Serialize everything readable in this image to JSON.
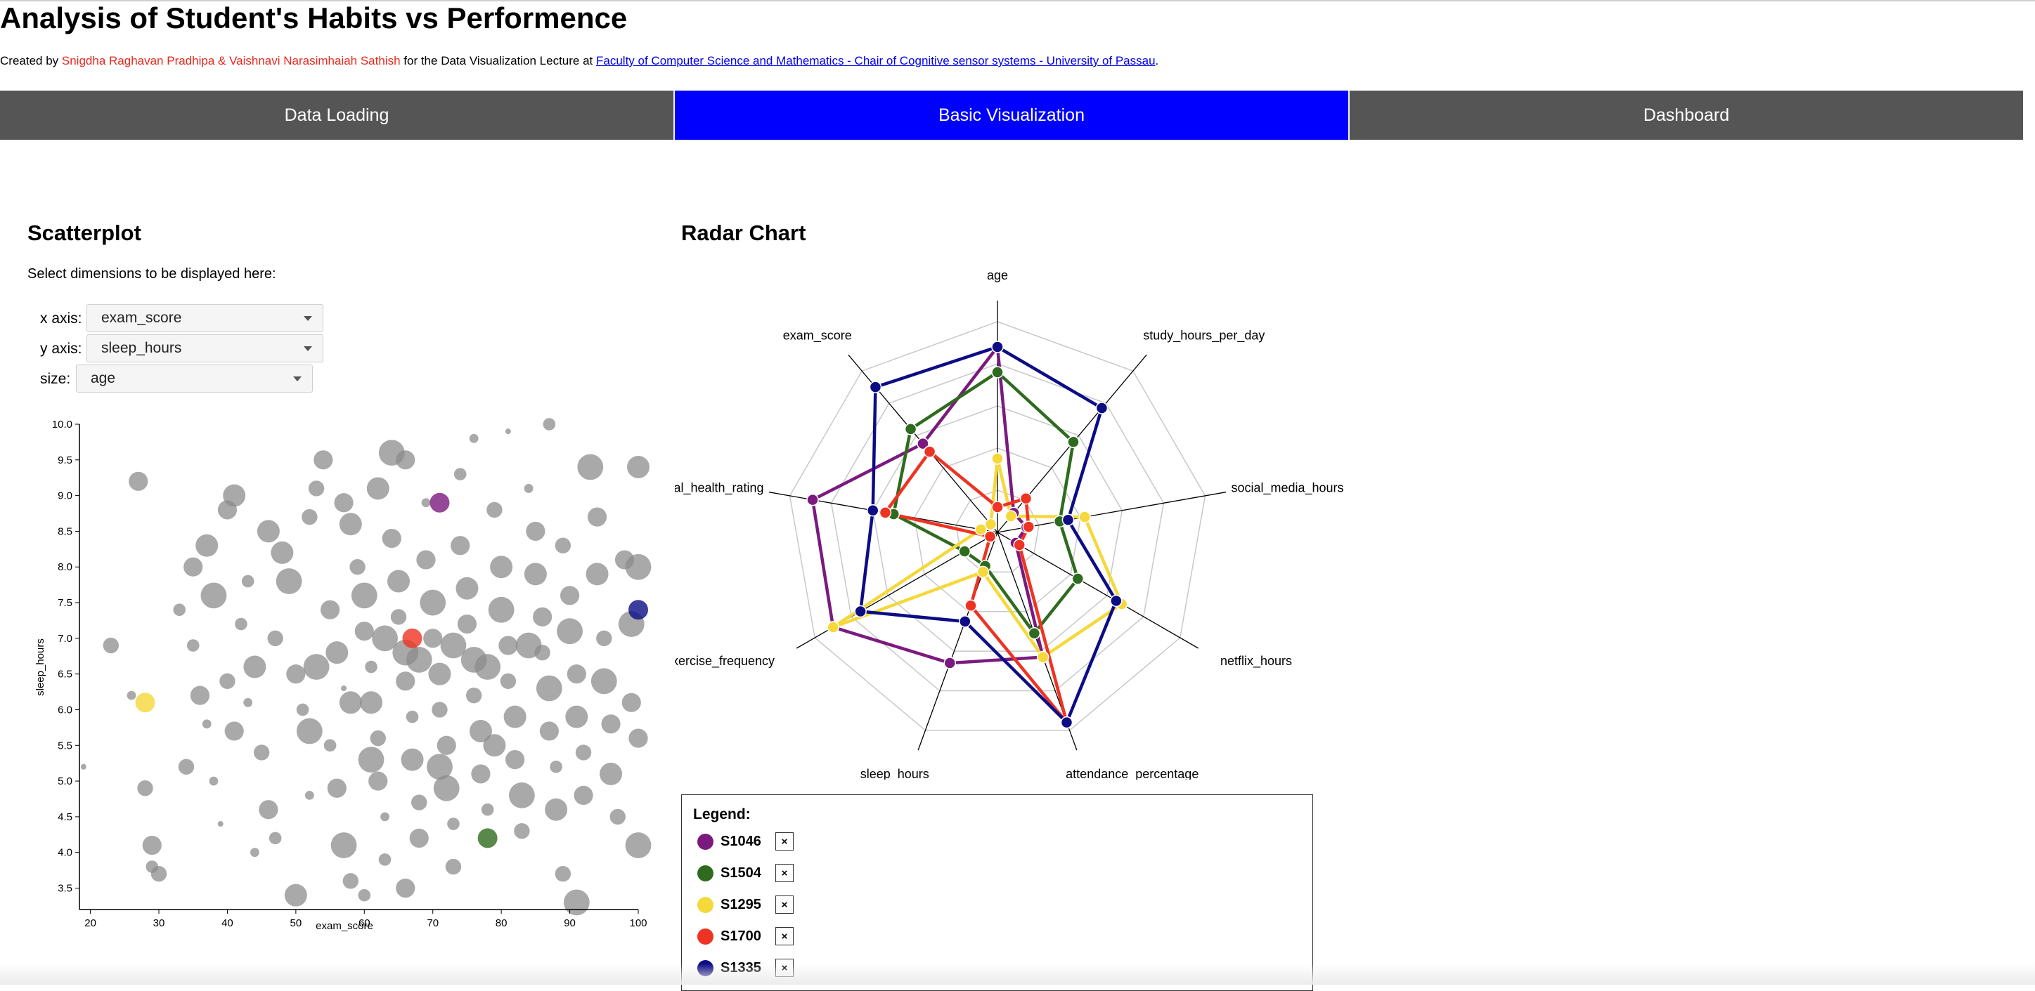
{
  "page": {
    "title": "Analysis of Student's Habits vs Performence",
    "credits_prefix": "Created by ",
    "authors": "Snigdha Raghavan Pradhipa & Vaishnavi Narasimhaiah Sathish",
    "credits_middle": " for the Data Visualization Lecture at ",
    "institution_link": "Faculty of Computer Science and Mathematics - Chair of Cognitive sensor systems - University of Passau",
    "credits_suffix": "."
  },
  "tabs": [
    {
      "label": "Data Loading",
      "active": false
    },
    {
      "label": "Basic Visualization",
      "active": true
    },
    {
      "label": "Dashboard",
      "active": false
    }
  ],
  "colors": {
    "tab_bg": "#555555",
    "tab_active_bg": "#0000ff",
    "author_text": "#e8281e",
    "link": "#0000ee",
    "dot_gray": "#8c8c8c"
  },
  "scatter": {
    "heading": "Scatterplot",
    "hint": "Select dimensions to be displayed here:",
    "controls": {
      "x_label": "x axis:",
      "x_value": "exam_score",
      "y_label": "y axis:",
      "y_value": "sleep_hours",
      "size_label": "size:",
      "size_value": "age"
    }
  },
  "radar": {
    "heading": "Radar Chart",
    "legend_title": "Legend:",
    "remove_symbol": "×",
    "students": [
      {
        "id": "S1046",
        "color": "#7b1a7e"
      },
      {
        "id": "S1504",
        "color": "#2e6b1e"
      },
      {
        "id": "S1295",
        "color": "#f5d83a"
      },
      {
        "id": "S1700",
        "color": "#ee3322"
      },
      {
        "id": "S1335",
        "color": "#0c0c85"
      }
    ]
  },
  "chart_data": [
    {
      "type": "scatter",
      "xlabel": "exam_score",
      "ylabel": "sleep_hours",
      "size_dimension": "age",
      "xlim": [
        18.4,
        100
      ],
      "ylim": [
        3.2,
        10.0
      ],
      "x_ticks": [
        20,
        30,
        40,
        50,
        60,
        70,
        80,
        90,
        100
      ],
      "y_ticks": [
        3.5,
        4.0,
        4.5,
        5.0,
        5.5,
        6.0,
        6.5,
        7.0,
        7.5,
        8.0,
        8.5,
        9.0,
        9.5,
        10.0
      ],
      "grid": false,
      "highlighted_points": [
        {
          "id": "S1046",
          "x": 71,
          "y": 8.9,
          "color": "#7b1a7e"
        },
        {
          "id": "S1504",
          "x": 78,
          "y": 4.2,
          "color": "#2e6b1e"
        },
        {
          "id": "S1295",
          "x": 28,
          "y": 6.1,
          "color": "#f5d83a"
        },
        {
          "id": "S1700",
          "x": 67,
          "y": 7.0,
          "color": "#ee3322"
        },
        {
          "id": "S1335",
          "x": 100,
          "y": 7.4,
          "color": "#0c0c85"
        }
      ],
      "points": [
        {
          "x": 27,
          "y": 9.2,
          "age": 22
        },
        {
          "x": 23,
          "y": 6.9,
          "age": 21
        },
        {
          "x": 26,
          "y": 6.2,
          "age": 19
        },
        {
          "x": 19,
          "y": 5.2,
          "age": 18
        },
        {
          "x": 28,
          "y": 4.9,
          "age": 21
        },
        {
          "x": 29,
          "y": 4.1,
          "age": 22
        },
        {
          "x": 29,
          "y": 3.8,
          "age": 20
        },
        {
          "x": 30,
          "y": 3.7,
          "age": 21
        },
        {
          "x": 33,
          "y": 7.4,
          "age": 20
        },
        {
          "x": 35,
          "y": 8.0,
          "age": 22
        },
        {
          "x": 37,
          "y": 8.3,
          "age": 23
        },
        {
          "x": 38,
          "y": 7.6,
          "age": 24
        },
        {
          "x": 35,
          "y": 6.9,
          "age": 20
        },
        {
          "x": 36,
          "y": 6.2,
          "age": 22
        },
        {
          "x": 37,
          "y": 5.8,
          "age": 19
        },
        {
          "x": 34,
          "y": 5.2,
          "age": 21
        },
        {
          "x": 38,
          "y": 5.0,
          "age": 19
        },
        {
          "x": 39,
          "y": 4.4,
          "age": 18
        },
        {
          "x": 40,
          "y": 8.8,
          "age": 22
        },
        {
          "x": 41,
          "y": 9.0,
          "age": 23
        },
        {
          "x": 42,
          "y": 7.2,
          "age": 20
        },
        {
          "x": 44,
          "y": 6.6,
          "age": 23
        },
        {
          "x": 43,
          "y": 6.1,
          "age": 19
        },
        {
          "x": 45,
          "y": 5.4,
          "age": 21
        },
        {
          "x": 46,
          "y": 4.6,
          "age": 22
        },
        {
          "x": 47,
          "y": 4.2,
          "age": 20
        },
        {
          "x": 48,
          "y": 8.2,
          "age": 23
        },
        {
          "x": 49,
          "y": 7.8,
          "age": 24
        },
        {
          "x": 47,
          "y": 7.0,
          "age": 21
        },
        {
          "x": 50,
          "y": 6.5,
          "age": 22
        },
        {
          "x": 51,
          "y": 6.0,
          "age": 20
        },
        {
          "x": 52,
          "y": 5.7,
          "age": 24
        },
        {
          "x": 53,
          "y": 9.1,
          "age": 21
        },
        {
          "x": 54,
          "y": 9.5,
          "age": 22
        },
        {
          "x": 50,
          "y": 3.4,
          "age": 23
        },
        {
          "x": 52,
          "y": 4.8,
          "age": 19
        },
        {
          "x": 55,
          "y": 7.4,
          "age": 22
        },
        {
          "x": 56,
          "y": 6.8,
          "age": 23
        },
        {
          "x": 57,
          "y": 6.3,
          "age": 18
        },
        {
          "x": 55,
          "y": 5.5,
          "age": 20
        },
        {
          "x": 56,
          "y": 4.9,
          "age": 22
        },
        {
          "x": 57,
          "y": 4.1,
          "age": 24
        },
        {
          "x": 58,
          "y": 8.6,
          "age": 23
        },
        {
          "x": 59,
          "y": 8.0,
          "age": 21
        },
        {
          "x": 60,
          "y": 7.6,
          "age": 24
        },
        {
          "x": 60,
          "y": 7.1,
          "age": 22
        },
        {
          "x": 61,
          "y": 6.6,
          "age": 20
        },
        {
          "x": 61,
          "y": 6.1,
          "age": 23
        },
        {
          "x": 62,
          "y": 5.6,
          "age": 21
        },
        {
          "x": 62,
          "y": 5.0,
          "age": 22
        },
        {
          "x": 63,
          "y": 4.5,
          "age": 19
        },
        {
          "x": 63,
          "y": 3.9,
          "age": 20
        },
        {
          "x": 64,
          "y": 9.6,
          "age": 24
        },
        {
          "x": 64,
          "y": 8.4,
          "age": 22
        },
        {
          "x": 65,
          "y": 7.8,
          "age": 23
        },
        {
          "x": 65,
          "y": 7.3,
          "age": 21
        },
        {
          "x": 66,
          "y": 6.8,
          "age": 24
        },
        {
          "x": 66,
          "y": 6.4,
          "age": 22
        },
        {
          "x": 67,
          "y": 5.9,
          "age": 20
        },
        {
          "x": 67,
          "y": 5.3,
          "age": 23
        },
        {
          "x": 68,
          "y": 4.7,
          "age": 21
        },
        {
          "x": 68,
          "y": 4.2,
          "age": 22
        },
        {
          "x": 69,
          "y": 8.9,
          "age": 19
        },
        {
          "x": 69,
          "y": 8.1,
          "age": 22
        },
        {
          "x": 70,
          "y": 7.5,
          "age": 24
        },
        {
          "x": 70,
          "y": 7.0,
          "age": 22
        },
        {
          "x": 71,
          "y": 6.5,
          "age": 23
        },
        {
          "x": 71,
          "y": 6.0,
          "age": 21
        },
        {
          "x": 72,
          "y": 5.5,
          "age": 22
        },
        {
          "x": 72,
          "y": 4.9,
          "age": 24
        },
        {
          "x": 73,
          "y": 4.4,
          "age": 20
        },
        {
          "x": 73,
          "y": 3.8,
          "age": 21
        },
        {
          "x": 74,
          "y": 9.3,
          "age": 20
        },
        {
          "x": 74,
          "y": 8.3,
          "age": 22
        },
        {
          "x": 75,
          "y": 7.7,
          "age": 23
        },
        {
          "x": 75,
          "y": 7.2,
          "age": 22
        },
        {
          "x": 76,
          "y": 6.7,
          "age": 24
        },
        {
          "x": 76,
          "y": 6.2,
          "age": 21
        },
        {
          "x": 77,
          "y": 5.7,
          "age": 23
        },
        {
          "x": 77,
          "y": 5.1,
          "age": 22
        },
        {
          "x": 78,
          "y": 4.6,
          "age": 20
        },
        {
          "x": 79,
          "y": 8.8,
          "age": 21
        },
        {
          "x": 80,
          "y": 8.0,
          "age": 23
        },
        {
          "x": 80,
          "y": 7.4,
          "age": 24
        },
        {
          "x": 81,
          "y": 6.9,
          "age": 22
        },
        {
          "x": 81,
          "y": 6.4,
          "age": 21
        },
        {
          "x": 82,
          "y": 5.9,
          "age": 23
        },
        {
          "x": 82,
          "y": 5.3,
          "age": 22
        },
        {
          "x": 83,
          "y": 4.8,
          "age": 24
        },
        {
          "x": 83,
          "y": 4.3,
          "age": 21
        },
        {
          "x": 84,
          "y": 9.1,
          "age": 19
        },
        {
          "x": 85,
          "y": 8.5,
          "age": 22
        },
        {
          "x": 85,
          "y": 7.9,
          "age": 23
        },
        {
          "x": 86,
          "y": 7.3,
          "age": 22
        },
        {
          "x": 86,
          "y": 6.8,
          "age": 21
        },
        {
          "x": 87,
          "y": 6.3,
          "age": 24
        },
        {
          "x": 87,
          "y": 5.7,
          "age": 22
        },
        {
          "x": 88,
          "y": 5.2,
          "age": 20
        },
        {
          "x": 88,
          "y": 4.6,
          "age": 23
        },
        {
          "x": 89,
          "y": 8.3,
          "age": 21
        },
        {
          "x": 90,
          "y": 7.6,
          "age": 22
        },
        {
          "x": 90,
          "y": 7.1,
          "age": 24
        },
        {
          "x": 91,
          "y": 6.5,
          "age": 22
        },
        {
          "x": 91,
          "y": 5.9,
          "age": 23
        },
        {
          "x": 92,
          "y": 5.4,
          "age": 21
        },
        {
          "x": 92,
          "y": 4.8,
          "age": 22
        },
        {
          "x": 93,
          "y": 9.4,
          "age": 24
        },
        {
          "x": 94,
          "y": 8.7,
          "age": 22
        },
        {
          "x": 94,
          "y": 7.9,
          "age": 23
        },
        {
          "x": 95,
          "y": 7.0,
          "age": 21
        },
        {
          "x": 95,
          "y": 6.4,
          "age": 24
        },
        {
          "x": 96,
          "y": 5.8,
          "age": 22
        },
        {
          "x": 96,
          "y": 5.1,
          "age": 23
        },
        {
          "x": 97,
          "y": 4.5,
          "age": 21
        },
        {
          "x": 98,
          "y": 8.1,
          "age": 22
        },
        {
          "x": 99,
          "y": 7.2,
          "age": 24
        },
        {
          "x": 99,
          "y": 6.1,
          "age": 22
        },
        {
          "x": 100,
          "y": 9.4,
          "age": 23
        },
        {
          "x": 100,
          "y": 8.0,
          "age": 24
        },
        {
          "x": 100,
          "y": 5.6,
          "age": 22
        },
        {
          "x": 100,
          "y": 4.1,
          "age": 24
        },
        {
          "x": 91,
          "y": 3.3,
          "age": 24
        },
        {
          "x": 89,
          "y": 3.7,
          "age": 21
        },
        {
          "x": 66,
          "y": 3.5,
          "age": 22
        },
        {
          "x": 60,
          "y": 3.4,
          "age": 20
        },
        {
          "x": 58,
          "y": 3.6,
          "age": 21
        },
        {
          "x": 44,
          "y": 4.0,
          "age": 19
        },
        {
          "x": 41,
          "y": 5.7,
          "age": 22
        },
        {
          "x": 40,
          "y": 6.4,
          "age": 21
        },
        {
          "x": 43,
          "y": 7.8,
          "age": 20
        },
        {
          "x": 46,
          "y": 8.5,
          "age": 23
        },
        {
          "x": 52,
          "y": 8.7,
          "age": 21
        },
        {
          "x": 57,
          "y": 8.9,
          "age": 22
        },
        {
          "x": 62,
          "y": 9.1,
          "age": 23
        },
        {
          "x": 66,
          "y": 9.5,
          "age": 22
        },
        {
          "x": 76,
          "y": 9.8,
          "age": 19
        },
        {
          "x": 81,
          "y": 9.9,
          "age": 18
        },
        {
          "x": 87,
          "y": 10.0,
          "age": 20
        },
        {
          "x": 53,
          "y": 6.6,
          "age": 24
        },
        {
          "x": 58,
          "y": 6.1,
          "age": 23
        },
        {
          "x": 63,
          "y": 7.0,
          "age": 24
        },
        {
          "x": 68,
          "y": 6.7,
          "age": 24
        },
        {
          "x": 73,
          "y": 6.9,
          "age": 24
        },
        {
          "x": 78,
          "y": 6.6,
          "age": 24
        },
        {
          "x": 84,
          "y": 6.9,
          "age": 24
        },
        {
          "x": 61,
          "y": 5.3,
          "age": 24
        },
        {
          "x": 71,
          "y": 5.2,
          "age": 24
        },
        {
          "x": 79,
          "y": 5.5,
          "age": 23
        }
      ]
    },
    {
      "type": "radar",
      "axes": [
        "age",
        "study_hours_per_day",
        "social_media_hours",
        "netflix_hours",
        "attendance_percentage",
        "sleep_hours",
        "exercise_frequency",
        "mental_health_rating",
        "exam_score"
      ],
      "grid": true,
      "series": [
        {
          "name": "S1046",
          "values": [
            0.88,
            0.12,
            0.14,
            0.1,
            0.63,
            0.66,
            0.9,
            0.89,
            0.55
          ]
        },
        {
          "name": "S1504",
          "values": [
            0.76,
            0.56,
            0.3,
            0.44,
            0.51,
            0.17,
            0.18,
            0.5,
            0.64
          ]
        },
        {
          "name": "S1295",
          "values": [
            0.35,
            0.1,
            0.42,
            0.68,
            0.63,
            0.2,
            0.9,
            0.08,
            0.05
          ]
        },
        {
          "name": "S1700",
          "values": [
            0.12,
            0.21,
            0.15,
            0.12,
            0.96,
            0.37,
            0.04,
            0.54,
            0.5
          ]
        },
        {
          "name": "S1335",
          "values": [
            0.88,
            0.77,
            0.34,
            0.65,
            0.96,
            0.45,
            0.75,
            0.6,
            0.9
          ]
        }
      ]
    }
  ]
}
